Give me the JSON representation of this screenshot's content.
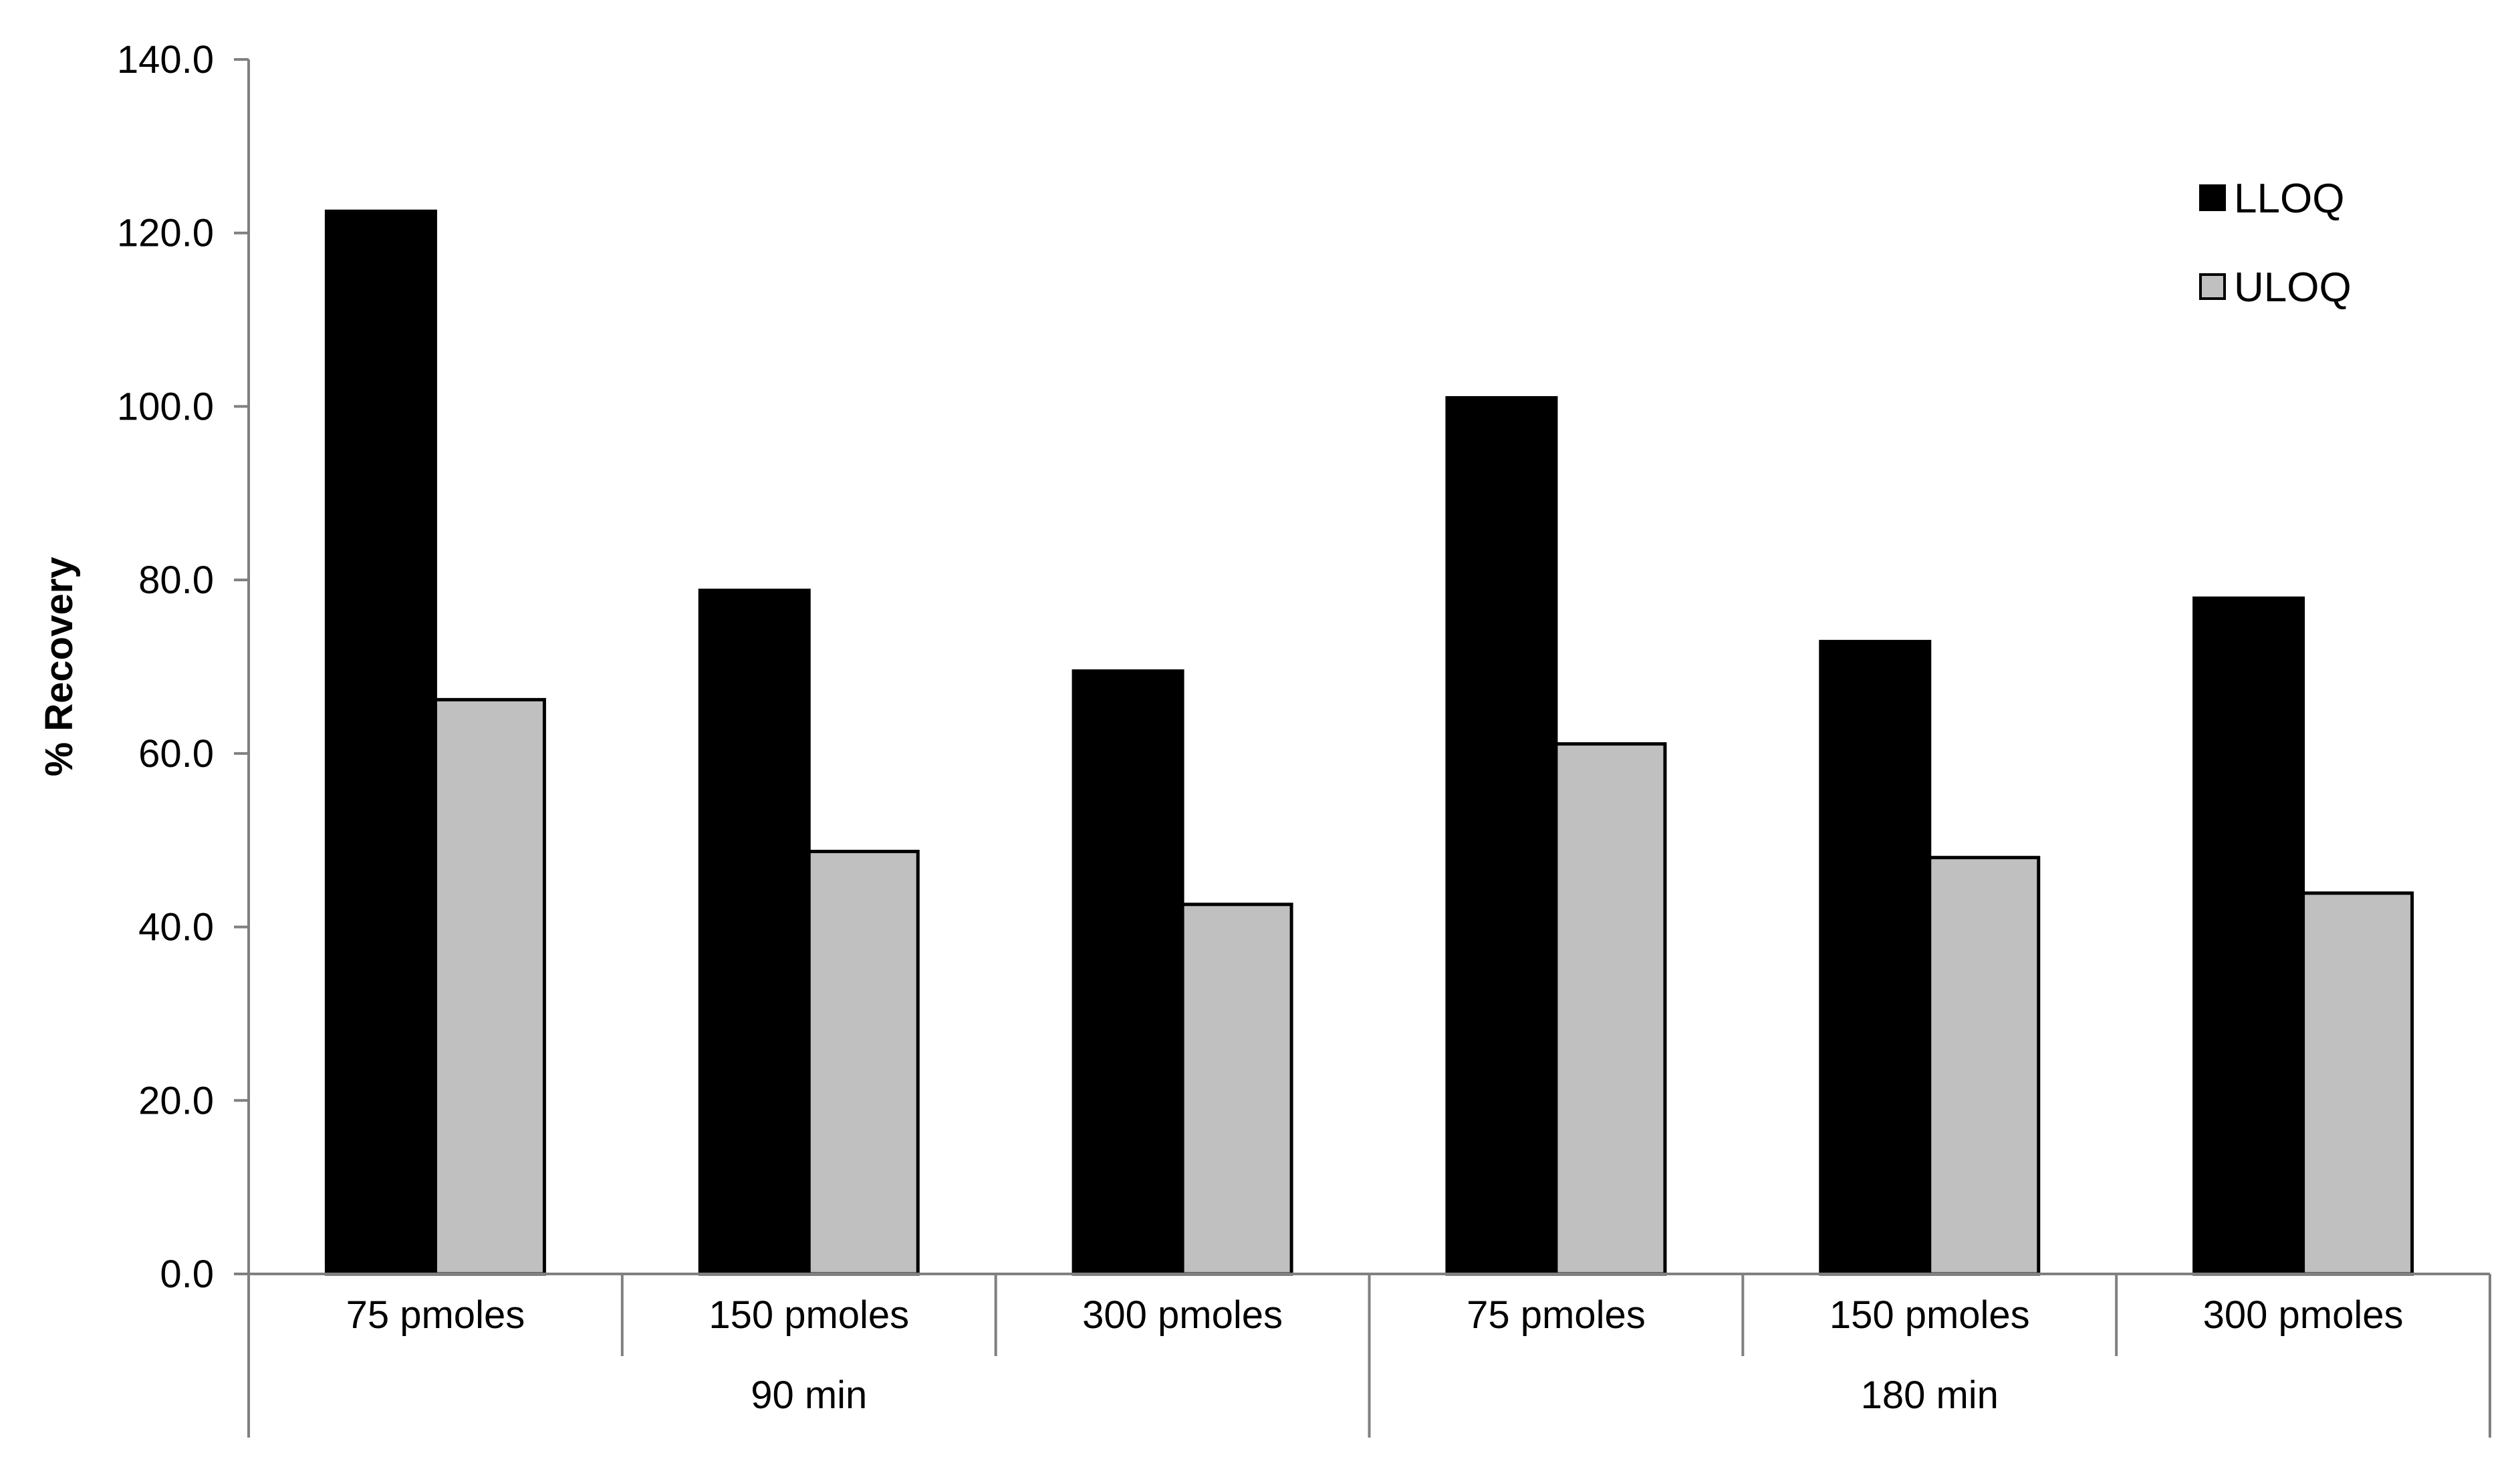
{
  "chart_data": {
    "type": "bar",
    "ylabel": "% Recovery",
    "ylim": [
      0,
      140
    ],
    "yticks": [
      "0.0",
      "20.0",
      "40.0",
      "60.0",
      "80.0",
      "100.0",
      "120.0",
      "140.0"
    ],
    "groups": [
      {
        "label": "90 min",
        "categories": [
          "75 pmoles",
          "150 pmoles",
          "300 pmoles"
        ]
      },
      {
        "label": "180 min",
        "categories": [
          "75 pmoles",
          "150 pmoles",
          "300 pmoles"
        ]
      }
    ],
    "series": [
      {
        "name": "LLOQ",
        "color": "#000000",
        "values": [
          122.5,
          78.8,
          69.5,
          101.0,
          72.9,
          77.9
        ]
      },
      {
        "name": "ULOQ",
        "color": "#c0c0c0",
        "values": [
          66.2,
          48.7,
          42.6,
          61.1,
          48.0,
          43.9
        ]
      }
    ],
    "legend": {
      "position": "top-right"
    },
    "grid": false
  }
}
